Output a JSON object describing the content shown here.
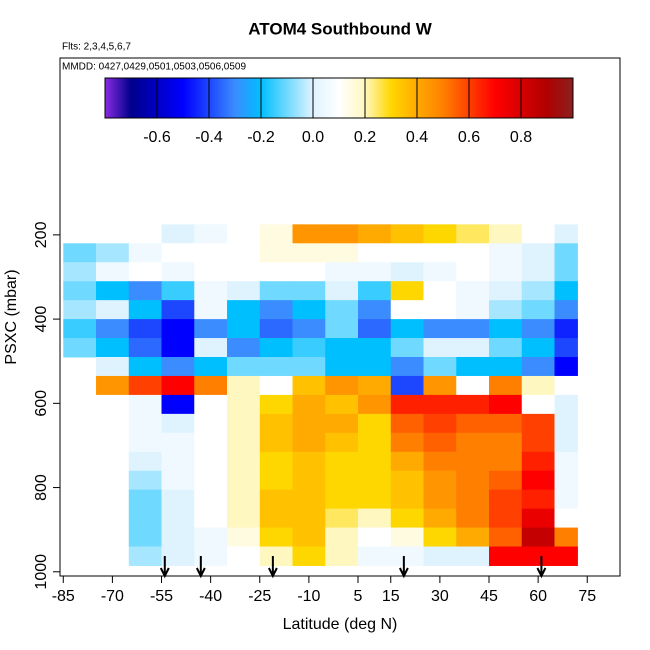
{
  "chart_data": {
    "type": "heatmap",
    "title": "ATOM4 Southbound W",
    "subtitle": "Flts: 2,3,4,5,6,7",
    "annotation": "MMDD: 0427,0429,0501,0503,0506,0509",
    "xlabel": "Latitude (deg N)",
    "ylabel": "PSXC (mbar)",
    "xlim": [
      -86,
      85
    ],
    "ylim": [
      1010,
      -220
    ],
    "xticks": [
      -85,
      -70,
      -55,
      -40,
      -25,
      -10,
      5,
      15,
      30,
      45,
      60,
      75
    ],
    "yticks": [
      200,
      400,
      600,
      800,
      1000
    ],
    "lat_edges": [
      -85,
      -75,
      -65,
      -55,
      -45,
      -35,
      -25,
      -15,
      -5,
      5,
      15,
      25,
      35,
      45,
      55,
      65,
      72
    ],
    "pressure_edges": [
      175,
      220,
      265,
      310,
      355,
      400,
      445,
      490,
      535,
      580,
      625,
      670,
      715,
      760,
      805,
      850,
      895,
      940,
      985
    ],
    "values": [
      [
        null,
        null,
        null,
        0.0,
        0.05,
        0.1,
        0.15,
        0.45,
        0.45,
        0.4,
        0.35,
        0.3,
        0.25,
        0.2,
        0.1,
        0.0
      ],
      [
        -0.1,
        -0.05,
        0.05,
        0.1,
        0.1,
        0.1,
        0.15,
        0.15,
        0.15,
        0.1,
        0.1,
        0.1,
        0.1,
        0.05,
        0.0,
        -0.1
      ],
      [
        -0.05,
        0.05,
        0.1,
        0.05,
        0.1,
        0.1,
        0.1,
        0.1,
        0.05,
        0.05,
        0.0,
        0.05,
        0.1,
        0.05,
        0.0,
        -0.1
      ],
      [
        -0.1,
        -0.2,
        -0.3,
        -0.15,
        0.05,
        0.0,
        -0.1,
        -0.1,
        0.0,
        -0.15,
        0.3,
        0.1,
        0.05,
        0.0,
        -0.05,
        -0.2
      ],
      [
        -0.05,
        0.0,
        -0.2,
        -0.4,
        0.05,
        -0.2,
        -0.3,
        -0.2,
        -0.1,
        -0.3,
        0.1,
        0.1,
        0.05,
        -0.05,
        -0.1,
        -0.3
      ],
      [
        -0.15,
        -0.3,
        -0.4,
        -0.5,
        -0.3,
        -0.2,
        -0.35,
        -0.3,
        -0.1,
        -0.35,
        -0.2,
        -0.3,
        -0.3,
        -0.2,
        -0.3,
        -0.45
      ],
      [
        -0.1,
        -0.2,
        -0.35,
        -0.5,
        0.0,
        -0.3,
        -0.2,
        -0.15,
        -0.2,
        -0.2,
        -0.1,
        0.0,
        0.0,
        -0.1,
        -0.2,
        -0.4
      ],
      [
        null,
        0.0,
        -0.2,
        -0.3,
        -0.2,
        -0.1,
        -0.1,
        -0.1,
        -0.2,
        -0.2,
        -0.3,
        -0.1,
        -0.2,
        -0.2,
        -0.3,
        -0.5
      ],
      [
        null,
        0.45,
        0.6,
        0.7,
        0.5,
        0.2,
        0.1,
        0.35,
        0.45,
        0.4,
        -0.4,
        0.45,
        0.1,
        0.5,
        0.2,
        0.1
      ],
      [
        null,
        0.1,
        0.05,
        -0.5,
        0.1,
        0.2,
        0.3,
        0.4,
        0.35,
        0.45,
        0.65,
        0.65,
        0.65,
        0.7,
        0.1,
        0.0
      ],
      [
        null,
        null,
        0.05,
        0.0,
        0.1,
        0.2,
        0.35,
        0.4,
        0.4,
        0.3,
        0.55,
        0.6,
        0.55,
        0.55,
        0.6,
        0.0
      ],
      [
        null,
        null,
        0.05,
        0.05,
        0.1,
        0.2,
        0.35,
        0.4,
        0.35,
        0.3,
        0.5,
        0.55,
        0.5,
        0.5,
        0.6,
        0.0
      ],
      [
        null,
        null,
        0.0,
        0.05,
        0.1,
        0.2,
        0.3,
        0.35,
        0.3,
        0.3,
        0.4,
        0.5,
        0.5,
        0.5,
        0.65,
        0.05
      ],
      [
        null,
        null,
        -0.05,
        0.05,
        0.1,
        0.2,
        0.3,
        0.35,
        0.3,
        0.3,
        0.35,
        0.45,
        0.5,
        0.55,
        0.7,
        0.05
      ],
      [
        null,
        null,
        -0.1,
        0.0,
        0.1,
        0.2,
        0.35,
        0.35,
        0.3,
        0.3,
        0.35,
        0.45,
        0.5,
        0.6,
        0.65,
        0.05
      ],
      [
        null,
        null,
        -0.1,
        0.0,
        0.1,
        0.2,
        0.35,
        0.35,
        0.25,
        0.2,
        0.3,
        0.4,
        0.5,
        0.6,
        0.75,
        0.1
      ],
      [
        null,
        null,
        -0.1,
        0.0,
        0.05,
        0.15,
        0.3,
        0.35,
        0.2,
        0.1,
        0.15,
        0.3,
        0.4,
        0.55,
        0.85,
        0.5
      ],
      [
        null,
        null,
        -0.05,
        0.0,
        0.05,
        0.1,
        0.2,
        0.3,
        0.2,
        0.05,
        0.05,
        0.0,
        0.0,
        0.7,
        0.7,
        0.7
      ]
    ],
    "profile_lats": [
      -54,
      -43,
      -21,
      19,
      61
    ],
    "colorbar_lim": [
      -0.8,
      1.0
    ],
    "colorbar_ticks": [
      -0.6,
      -0.4,
      -0.2,
      {
        "value": 0,
        "label": "0.0"
      },
      0.2,
      0.4,
      0.6,
      0.8
    ],
    "colorscale": [
      [
        -0.8,
        "#8a2be2"
      ],
      [
        -0.7,
        "#00008b"
      ],
      [
        -0.5,
        "#0000ff"
      ],
      [
        -0.3,
        "#3a8cff"
      ],
      [
        -0.2,
        "#00bfff"
      ],
      [
        0.0,
        "#dff3ff"
      ],
      [
        0.1,
        "#ffffff"
      ],
      [
        0.2,
        "#fff7c0"
      ],
      [
        0.3,
        "#ffd700"
      ],
      [
        0.4,
        "#ffaa00"
      ],
      [
        0.5,
        "#ff8000"
      ],
      [
        0.6,
        "#ff4000"
      ],
      [
        0.7,
        "#ff0000"
      ],
      [
        0.9,
        "#b00000"
      ],
      [
        1.0,
        "#8b2020"
      ]
    ]
  }
}
